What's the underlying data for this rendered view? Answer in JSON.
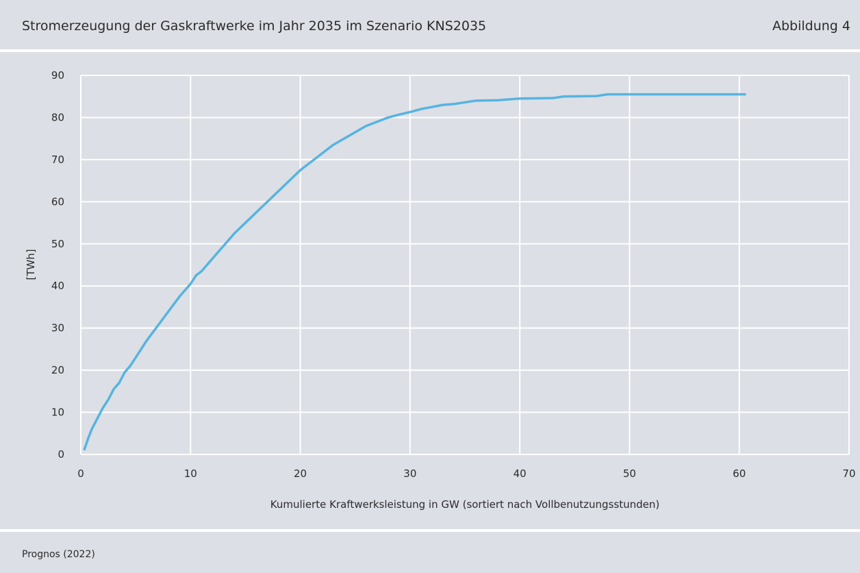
{
  "chart_data": {
    "type": "line",
    "title": "Stromerzeugung der Gaskraftwerke im Jahr 2035 im Szenario KNS2035",
    "figure_label": "Abbildung 4",
    "source": "Prognos (2022)",
    "xlabel": "Kumulierte Kraftwerksleistung in GW (sortiert nach Vollbenutzungsstunden)",
    "ylabel": "[TWh]",
    "xlim": [
      0,
      70
    ],
    "xticks": [
      0,
      10,
      20,
      30,
      40,
      50,
      60,
      70
    ],
    "ylim": [
      0,
      90
    ],
    "yticks": [
      0,
      10,
      20,
      30,
      40,
      50,
      60,
      70,
      80,
      90
    ],
    "grid": true,
    "series": [
      {
        "name": "Stromerzeugung",
        "color": "#56b4e0",
        "x": [
          0.3,
          0.7,
          1,
          1.5,
          2,
          2.5,
          3,
          3.5,
          4,
          4.5,
          5,
          5.5,
          6,
          7,
          8,
          9,
          10,
          10.5,
          11,
          12,
          13,
          14,
          15,
          16,
          17,
          18,
          19,
          20,
          21,
          22,
          23,
          24,
          25,
          26,
          27,
          28,
          29,
          30,
          31,
          32,
          33,
          34,
          35,
          36,
          38,
          40,
          43,
          44,
          47,
          48,
          60.6
        ],
        "values": [
          1,
          4,
          6,
          8.5,
          11,
          13,
          15.5,
          17,
          19.5,
          21,
          23,
          25,
          27,
          30.5,
          34,
          37.5,
          40.5,
          42.5,
          43.5,
          46.5,
          49.5,
          52.5,
          55,
          57.5,
          60,
          62.5,
          65,
          67.5,
          69.5,
          71.5,
          73.5,
          75,
          76.5,
          78,
          79,
          80,
          80.7,
          81.3,
          82,
          82.5,
          83,
          83.2,
          83.6,
          84,
          84.1,
          84.5,
          84.6,
          85,
          85.1,
          85.5,
          85.5
        ]
      }
    ]
  }
}
